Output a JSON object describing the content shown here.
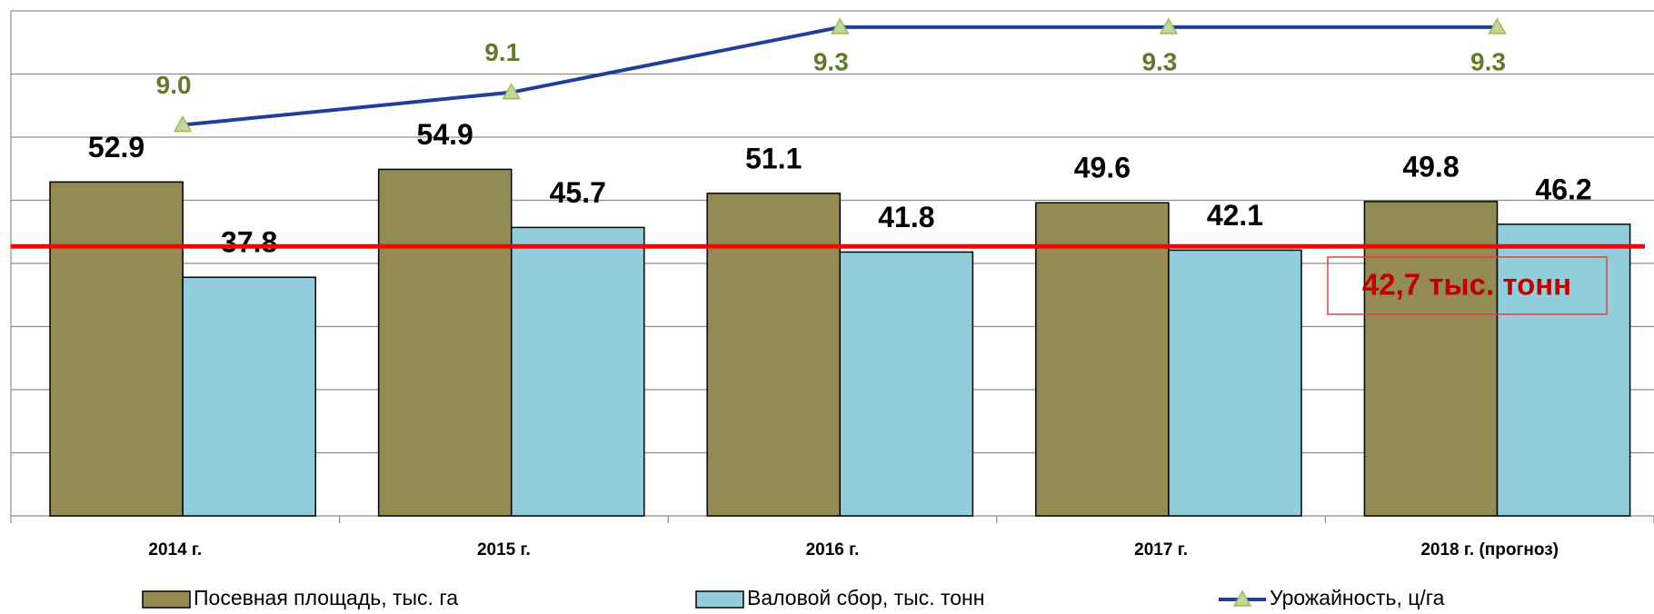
{
  "chart_data": {
    "type": "bar_line",
    "categories": [
      "2014 г.",
      "2015 г.",
      "2016 г.",
      "2017 г.",
      "2018 г. (прогноз)"
    ],
    "series": [
      {
        "name": "Посевная площадь, тыс. га",
        "color": "#948a54",
        "type": "bar",
        "values": [
          52.9,
          54.9,
          51.1,
          49.6,
          49.8
        ]
      },
      {
        "name": "Валовой сбор, тыс. тонн",
        "color": "#92cddc",
        "type": "bar",
        "values": [
          37.8,
          45.7,
          41.8,
          42.1,
          46.2
        ]
      },
      {
        "name": "Урожайность, ц/га",
        "color": "#1f3f99",
        "type": "line",
        "axis": "y2",
        "values": [
          9.0,
          9.1,
          9.3,
          9.3,
          9.3
        ],
        "value_labels": [
          "9.0",
          "9.1",
          "9.3",
          "9.3",
          "9.3"
        ]
      }
    ],
    "ylim": [
      0,
      80
    ],
    "yticks": [
      0,
      10,
      20,
      30,
      40,
      50,
      60,
      70,
      80
    ],
    "y2lim": [
      7.8,
      9.35
    ],
    "grid": true,
    "reference": {
      "value": 42.7,
      "label": "42,7 тыс. тонн",
      "color": "#ff0000"
    },
    "legend": "bottom"
  }
}
